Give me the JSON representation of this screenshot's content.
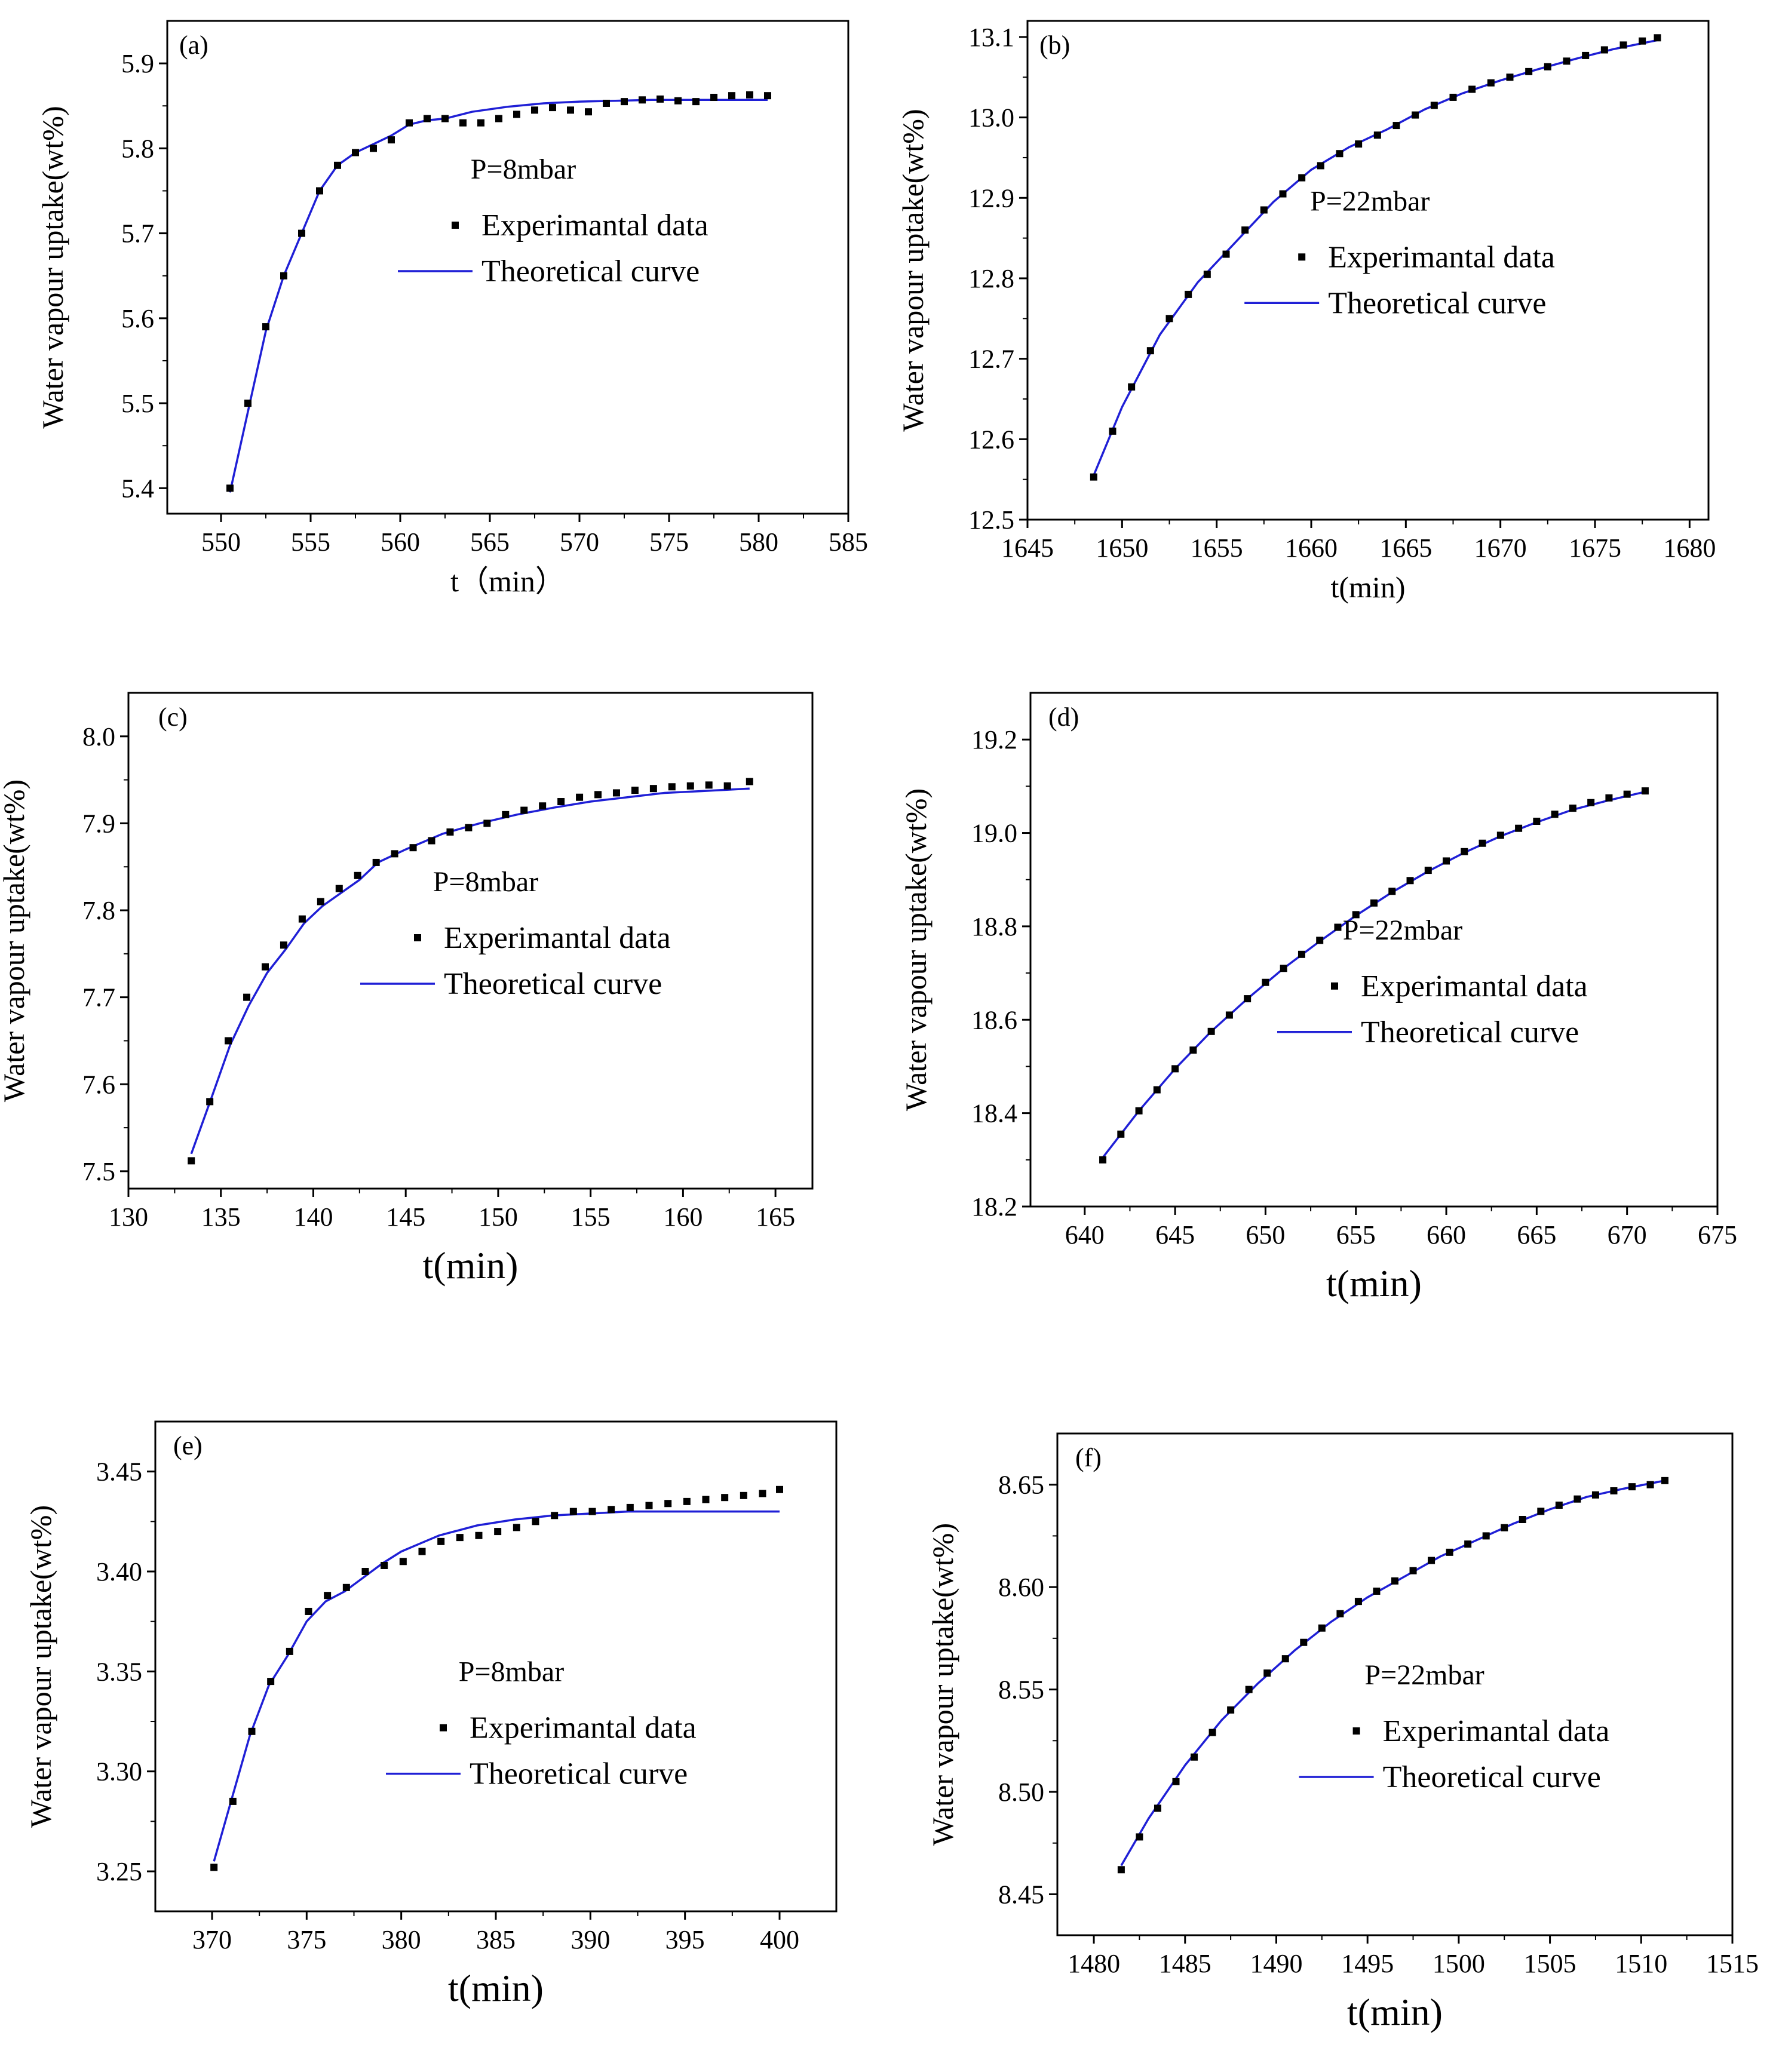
{
  "figure": {
    "colors": {
      "theory_line": "#1f1fd6",
      "data_marker": "#000000",
      "axis": "#000000",
      "background": "#ffffff"
    }
  },
  "chart_data": [
    {
      "type": "scatter",
      "panel_label": "(a)",
      "annotation": "P=8mbar",
      "xlabel": "t（min）",
      "ylabel": "Water vapour uptake(wt%)",
      "xlim": [
        547,
        585
      ],
      "ylim": [
        5.37,
        5.95
      ],
      "xticks": [
        550,
        555,
        560,
        565,
        570,
        575,
        580,
        585
      ],
      "yticks": [
        5.4,
        5.5,
        5.6,
        5.7,
        5.8,
        5.9
      ],
      "ytick_decimals": 1,
      "legend": {
        "experimental": "Experimantal data",
        "theoretical": "Theoretical curve",
        "placement": "center-right"
      },
      "series": [
        {
          "name": "Experimantal data",
          "x": [
            550.5,
            551.5,
            552.5,
            553.5,
            554.5,
            555.5,
            556.5,
            557.5,
            558.5,
            559.5,
            560.5,
            561.5,
            562.5,
            563.5,
            564.5,
            565.5,
            566.5,
            567.5,
            568.5,
            569.5,
            570.5,
            571.5,
            572.5,
            573.5,
            574.5,
            575.5,
            576.5,
            577.5,
            578.5,
            579.5,
            580.5
          ],
          "y": [
            5.4,
            5.5,
            5.59,
            5.65,
            5.7,
            5.75,
            5.78,
            5.795,
            5.8,
            5.81,
            5.83,
            5.835,
            5.835,
            5.83,
            5.83,
            5.835,
            5.84,
            5.845,
            5.848,
            5.845,
            5.843,
            5.853,
            5.855,
            5.857,
            5.858,
            5.856,
            5.855,
            5.86,
            5.862,
            5.863,
            5.862
          ]
        },
        {
          "name": "Theoretical curve",
          "x": [
            550.5,
            551.5,
            552.5,
            553.5,
            554.5,
            555.5,
            556.5,
            557.5,
            558.5,
            559.5,
            560.5,
            561.5,
            562.5,
            564,
            566,
            568,
            570,
            572,
            574,
            576,
            578,
            580.5
          ],
          "y": [
            5.395,
            5.49,
            5.585,
            5.65,
            5.7,
            5.75,
            5.78,
            5.795,
            5.805,
            5.815,
            5.828,
            5.833,
            5.835,
            5.843,
            5.849,
            5.853,
            5.855,
            5.856,
            5.857,
            5.857,
            5.857,
            5.857
          ]
        }
      ]
    },
    {
      "type": "scatter",
      "panel_label": "(b)",
      "annotation": "P=22mbar",
      "xlabel": "t(min)",
      "ylabel": "Water vapour uptake(wt%)",
      "xlim": [
        1645,
        1681
      ],
      "ylim": [
        12.5,
        13.12
      ],
      "xticks": [
        1645,
        1650,
        1655,
        1660,
        1665,
        1670,
        1675,
        1680
      ],
      "yticks": [
        12.5,
        12.6,
        12.7,
        12.8,
        12.9,
        13.0,
        13.1
      ],
      "ytick_decimals": 1,
      "legend": {
        "experimental": "Experimantal data",
        "theoretical": "Theoretical curve",
        "placement": "center-right"
      },
      "series": [
        {
          "name": "Experimantal data",
          "x": [
            1648.5,
            1649.5,
            1650.5,
            1651.5,
            1652.5,
            1653.5,
            1654.5,
            1655.5,
            1656.5,
            1657.5,
            1658.5,
            1659.5,
            1660.5,
            1661.5,
            1662.5,
            1663.5,
            1664.5,
            1665.5,
            1666.5,
            1667.5,
            1668.5,
            1669.5,
            1670.5,
            1671.5,
            1672.5,
            1673.5,
            1674.5,
            1675.5,
            1676.5,
            1677.5,
            1678.3
          ],
          "y": [
            12.553,
            12.61,
            12.665,
            12.71,
            12.75,
            12.78,
            12.805,
            12.83,
            12.86,
            12.885,
            12.905,
            12.925,
            12.94,
            12.955,
            12.967,
            12.978,
            12.99,
            13.003,
            13.015,
            13.025,
            13.035,
            13.043,
            13.05,
            13.057,
            13.063,
            13.07,
            13.077,
            13.084,
            13.09,
            13.095,
            13.099
          ]
        },
        {
          "name": "Theoretical curve",
          "x": [
            1648.5,
            1650,
            1652,
            1654,
            1656,
            1658,
            1660,
            1662,
            1664,
            1666,
            1668,
            1670,
            1672,
            1674,
            1676,
            1678.3
          ],
          "y": [
            12.555,
            12.64,
            12.73,
            12.795,
            12.845,
            12.895,
            12.935,
            12.963,
            12.985,
            13.01,
            13.03,
            13.046,
            13.06,
            13.073,
            13.085,
            13.096
          ]
        }
      ]
    },
    {
      "type": "scatter",
      "panel_label": "(c)",
      "annotation": "P=8mbar",
      "xlabel": "t(min)",
      "ylabel": "Water vapour uptake(wt%)",
      "xlim": [
        130,
        167
      ],
      "ylim": [
        7.48,
        8.05
      ],
      "xticks": [
        130,
        135,
        140,
        145,
        150,
        155,
        160,
        165
      ],
      "yticks": [
        7.5,
        7.6,
        7.7,
        7.8,
        7.9,
        8.0
      ],
      "ytick_decimals": 1,
      "legend": {
        "experimental": "Experimantal data",
        "theoretical": "Theoretical curve",
        "placement": "center-right"
      },
      "series": [
        {
          "name": "Experimantal data",
          "x": [
            133.4,
            134.4,
            135.4,
            136.4,
            137.4,
            138.4,
            139.4,
            140.4,
            141.4,
            142.4,
            143.4,
            144.4,
            145.4,
            146.4,
            147.4,
            148.4,
            149.4,
            150.4,
            151.4,
            152.4,
            153.4,
            154.4,
            155.4,
            156.4,
            157.4,
            158.4,
            159.4,
            160.4,
            161.4,
            162.4,
            163.6
          ],
          "y": [
            7.512,
            7.58,
            7.65,
            7.7,
            7.735,
            7.76,
            7.79,
            7.81,
            7.825,
            7.84,
            7.855,
            7.865,
            7.872,
            7.88,
            7.89,
            7.895,
            7.9,
            7.91,
            7.915,
            7.92,
            7.925,
            7.93,
            7.933,
            7.935,
            7.938,
            7.94,
            7.942,
            7.943,
            7.944,
            7.943,
            7.948
          ]
        },
        {
          "name": "Theoretical curve",
          "x": [
            133.4,
            134.5,
            135.5,
            136.5,
            137.5,
            138.5,
            139.5,
            140.5,
            141.5,
            142.5,
            143.5,
            145,
            147,
            149,
            151,
            153,
            155,
            157,
            159,
            161,
            163.6
          ],
          "y": [
            7.52,
            7.585,
            7.645,
            7.69,
            7.728,
            7.755,
            7.785,
            7.805,
            7.82,
            7.835,
            7.855,
            7.87,
            7.888,
            7.9,
            7.91,
            7.918,
            7.925,
            7.93,
            7.935,
            7.937,
            7.94
          ]
        }
      ]
    },
    {
      "type": "scatter",
      "panel_label": "(d)",
      "annotation": "P=22mbar",
      "xlabel": "t(min)",
      "ylabel": "Water vapour uptake(wt%)",
      "xlim": [
        637,
        675
      ],
      "ylim": [
        18.2,
        19.3
      ],
      "xticks": [
        640,
        645,
        650,
        655,
        660,
        665,
        670,
        675
      ],
      "yticks": [
        18.2,
        18.4,
        18.6,
        18.8,
        19.0,
        19.2
      ],
      "ytick_decimals": 1,
      "legend": {
        "experimental": "Experimantal data",
        "theoretical": "Theoretical curve",
        "placement": "center-right"
      },
      "series": [
        {
          "name": "Experimantal data",
          "x": [
            641.0,
            642.0,
            643.0,
            644.0,
            645.0,
            646.0,
            647.0,
            648.0,
            649.0,
            650.0,
            651.0,
            652.0,
            653.0,
            654.0,
            655.0,
            656.0,
            657.0,
            658.0,
            659.0,
            660.0,
            661.0,
            662.0,
            663.0,
            664.0,
            665.0,
            666.0,
            667.0,
            668.0,
            669.0,
            670.0,
            671.0
          ],
          "y": [
            18.3,
            18.355,
            18.405,
            18.45,
            18.495,
            18.535,
            18.575,
            18.61,
            18.645,
            18.68,
            18.71,
            18.74,
            18.77,
            18.798,
            18.825,
            18.85,
            18.875,
            18.898,
            18.92,
            18.94,
            18.96,
            18.978,
            18.995,
            19.01,
            19.025,
            19.04,
            19.053,
            19.065,
            19.075,
            19.083,
            19.09
          ]
        },
        {
          "name": "Theoretical curve",
          "x": [
            641.0,
            643,
            645,
            647,
            649,
            651,
            653,
            655,
            657,
            659,
            661,
            663,
            665,
            667,
            669,
            671.0
          ],
          "y": [
            18.305,
            18.405,
            18.495,
            18.575,
            18.645,
            18.71,
            18.768,
            18.823,
            18.873,
            18.918,
            18.958,
            18.993,
            19.023,
            19.05,
            19.07,
            19.088
          ]
        }
      ]
    },
    {
      "type": "scatter",
      "panel_label": "(e)",
      "annotation": "P=8mbar",
      "xlabel": "t(min)",
      "ylabel": "Water vapour uptake(wt%)",
      "xlim": [
        367,
        403
      ],
      "ylim": [
        3.23,
        3.475
      ],
      "xticks": [
        370,
        375,
        380,
        385,
        390,
        395,
        400
      ],
      "yticks": [
        3.25,
        3.3,
        3.35,
        3.4,
        3.45
      ],
      "ytick_decimals": 2,
      "legend": {
        "experimental": "Experimantal data",
        "theoretical": "Theoretical curve",
        "placement": "center-right"
      },
      "series": [
        {
          "name": "Experimantal data",
          "x": [
            370.1,
            371.1,
            372.1,
            373.1,
            374.1,
            375.1,
            376.1,
            377.1,
            378.1,
            379.1,
            380.1,
            381.1,
            382.1,
            383.1,
            384.1,
            385.1,
            386.1,
            387.1,
            388.1,
            389.1,
            390.1,
            391.1,
            392.1,
            393.1,
            394.1,
            395.1,
            396.1,
            397.1,
            398.1,
            399.1,
            400.0
          ],
          "y": [
            3.252,
            3.285,
            3.32,
            3.345,
            3.36,
            3.38,
            3.388,
            3.392,
            3.4,
            3.403,
            3.405,
            3.41,
            3.415,
            3.417,
            3.418,
            3.42,
            3.422,
            3.425,
            3.428,
            3.43,
            3.43,
            3.431,
            3.432,
            3.433,
            3.434,
            3.435,
            3.436,
            3.437,
            3.438,
            3.439,
            3.441
          ]
        },
        {
          "name": "Theoretical curve",
          "x": [
            370.1,
            371,
            372,
            373,
            374,
            375,
            376,
            377,
            378,
            379,
            380,
            381,
            382,
            384,
            386,
            388,
            390,
            392,
            394,
            396,
            398,
            400.0
          ],
          "y": [
            3.255,
            3.285,
            3.318,
            3.343,
            3.358,
            3.375,
            3.385,
            3.39,
            3.397,
            3.404,
            3.41,
            3.414,
            3.418,
            3.423,
            3.426,
            3.428,
            3.429,
            3.43,
            3.43,
            3.43,
            3.43,
            3.43
          ]
        }
      ]
    },
    {
      "type": "scatter",
      "panel_label": "(f)",
      "annotation": "P=22mbar",
      "xlabel": "t(min)",
      "ylabel": "Water vapour uptake(wt%)",
      "xlim": [
        1478,
        1515
      ],
      "ylim": [
        8.43,
        8.675
      ],
      "xticks": [
        1480,
        1485,
        1490,
        1495,
        1500,
        1505,
        1510,
        1515
      ],
      "yticks": [
        8.45,
        8.5,
        8.55,
        8.6,
        8.65
      ],
      "ytick_decimals": 2,
      "legend": {
        "experimental": "Experimantal data",
        "theoretical": "Theoretical curve",
        "placement": "center-right"
      },
      "series": [
        {
          "name": "Experimantal data",
          "x": [
            1481.5,
            1482.5,
            1483.5,
            1484.5,
            1485.5,
            1486.5,
            1487.5,
            1488.5,
            1489.5,
            1490.5,
            1491.5,
            1492.5,
            1493.5,
            1494.5,
            1495.5,
            1496.5,
            1497.5,
            1498.5,
            1499.5,
            1500.5,
            1501.5,
            1502.5,
            1503.5,
            1504.5,
            1505.5,
            1506.5,
            1507.5,
            1508.5,
            1509.5,
            1510.5,
            1511.3
          ],
          "y": [
            8.462,
            8.478,
            8.492,
            8.505,
            8.517,
            8.529,
            8.54,
            8.55,
            8.558,
            8.565,
            8.573,
            8.58,
            8.587,
            8.593,
            8.598,
            8.603,
            8.608,
            8.613,
            8.617,
            8.621,
            8.625,
            8.629,
            8.633,
            8.637,
            8.64,
            8.643,
            8.645,
            8.647,
            8.649,
            8.65,
            8.652
          ]
        },
        {
          "name": "Theoretical curve",
          "x": [
            1481.5,
            1483,
            1485,
            1487,
            1489,
            1491,
            1493,
            1495,
            1497,
            1499,
            1501,
            1503,
            1505,
            1507,
            1509,
            1511.3
          ],
          "y": [
            8.464,
            8.487,
            8.513,
            8.535,
            8.553,
            8.569,
            8.583,
            8.595,
            8.605,
            8.615,
            8.623,
            8.631,
            8.638,
            8.644,
            8.648,
            8.652
          ]
        }
      ]
    }
  ]
}
